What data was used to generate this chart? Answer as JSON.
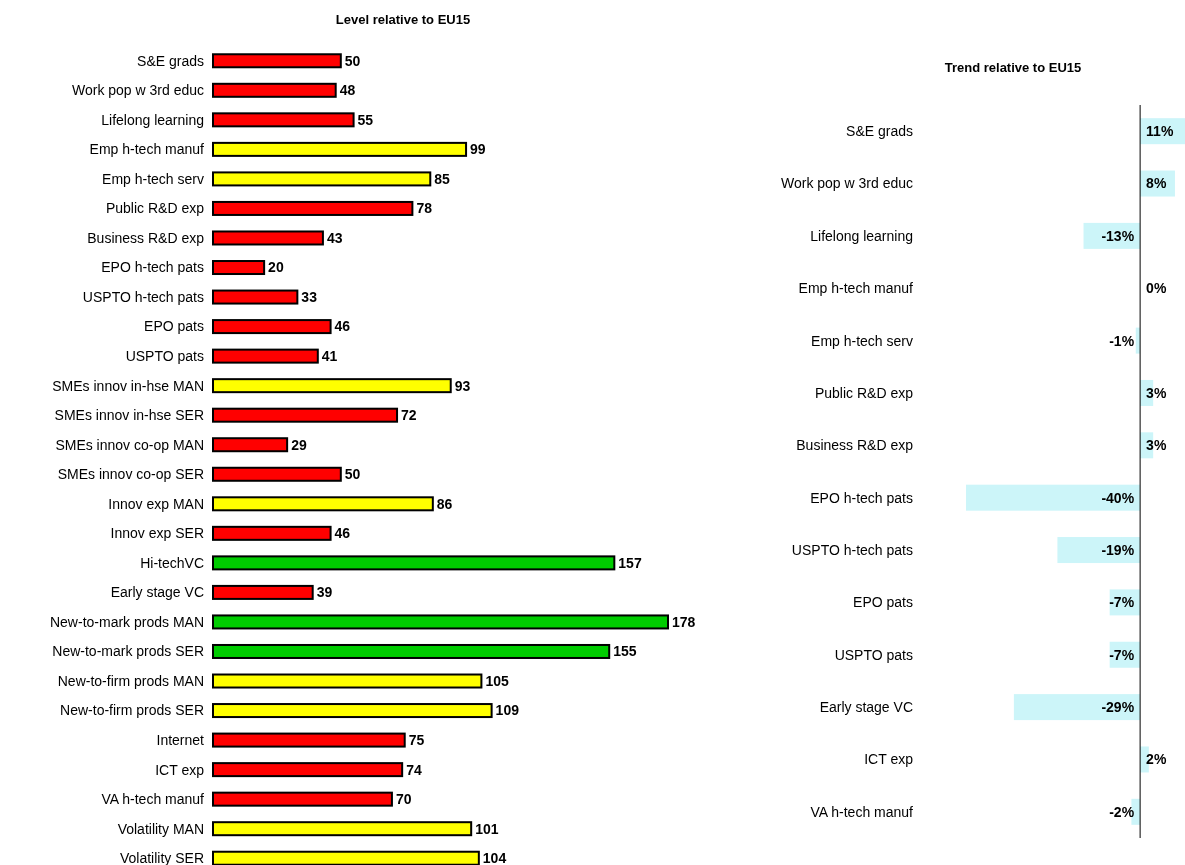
{
  "chart_data": [
    {
      "type": "bar",
      "orientation": "horizontal",
      "title": "Level relative to EU15",
      "data_labels": true,
      "categories": [
        "S&E grads",
        "Work pop w 3rd educ",
        "Lifelong learning",
        "Emp h-tech manuf",
        "Emp h-tech serv",
        "Public R&D exp",
        "Business R&D exp",
        "EPO h-tech pats",
        "USPTO h-tech pats",
        "EPO pats",
        "USPTO pats",
        "SMEs innov in-hse MAN",
        "SMEs innov in-hse SER",
        "SMEs innov co-op MAN",
        "SMEs innov co-op SER",
        "Innov exp MAN",
        "Innov exp SER",
        "Hi-techVC",
        "Early stage VC",
        "New-to-mark prods MAN",
        "New-to-mark prods SER",
        "New-to-firm  prods MAN",
        "New-to-firm  prods SER",
        "Internet",
        "ICT exp",
        "VA h-tech manuf",
        "Volatility MAN",
        "Volatility SER"
      ],
      "values": [
        50,
        48,
        55,
        99,
        85,
        78,
        43,
        20,
        33,
        46,
        41,
        93,
        72,
        29,
        50,
        86,
        46,
        157,
        39,
        178,
        155,
        105,
        109,
        75,
        74,
        70,
        101,
        104
      ],
      "colors": [
        "#ff0000",
        "#ff0000",
        "#ff0000",
        "#ffff00",
        "#ffff00",
        "#ff0000",
        "#ff0000",
        "#ff0000",
        "#ff0000",
        "#ff0000",
        "#ff0000",
        "#ffff00",
        "#ff0000",
        "#ff0000",
        "#ff0000",
        "#ffff00",
        "#ff0000",
        "#00cc00",
        "#ff0000",
        "#00cc00",
        "#00cc00",
        "#ffff00",
        "#ffff00",
        "#ff0000",
        "#ff0000",
        "#ff0000",
        "#ffff00",
        "#ffff00"
      ]
    },
    {
      "type": "bar",
      "orientation": "horizontal",
      "title": "Trend relative to EU15",
      "color": "#ccf5f9",
      "categories": [
        "S&E grads",
        "Work pop w 3rd educ",
        "Lifelong learning",
        "Emp h-tech manuf",
        "Emp h-tech serv",
        "Public R&D exp",
        "Business R&D exp",
        "EPO h-tech pats",
        "USPTO h-tech pats",
        "EPO pats",
        "USPTO pats",
        "Early stage VC",
        "ICT exp",
        "VA h-tech manuf"
      ],
      "values": [
        11,
        8,
        -13,
        0,
        -1,
        3,
        3,
        -40,
        -19,
        -7,
        -7,
        -29,
        2,
        -2
      ],
      "value_labels": [
        "11%",
        "8%",
        "-13%",
        "0%",
        "-1%",
        "3%",
        "3%",
        "-40%",
        "-19%",
        "-7%",
        "-7%",
        "-29%",
        "2%",
        "-2%"
      ]
    }
  ]
}
